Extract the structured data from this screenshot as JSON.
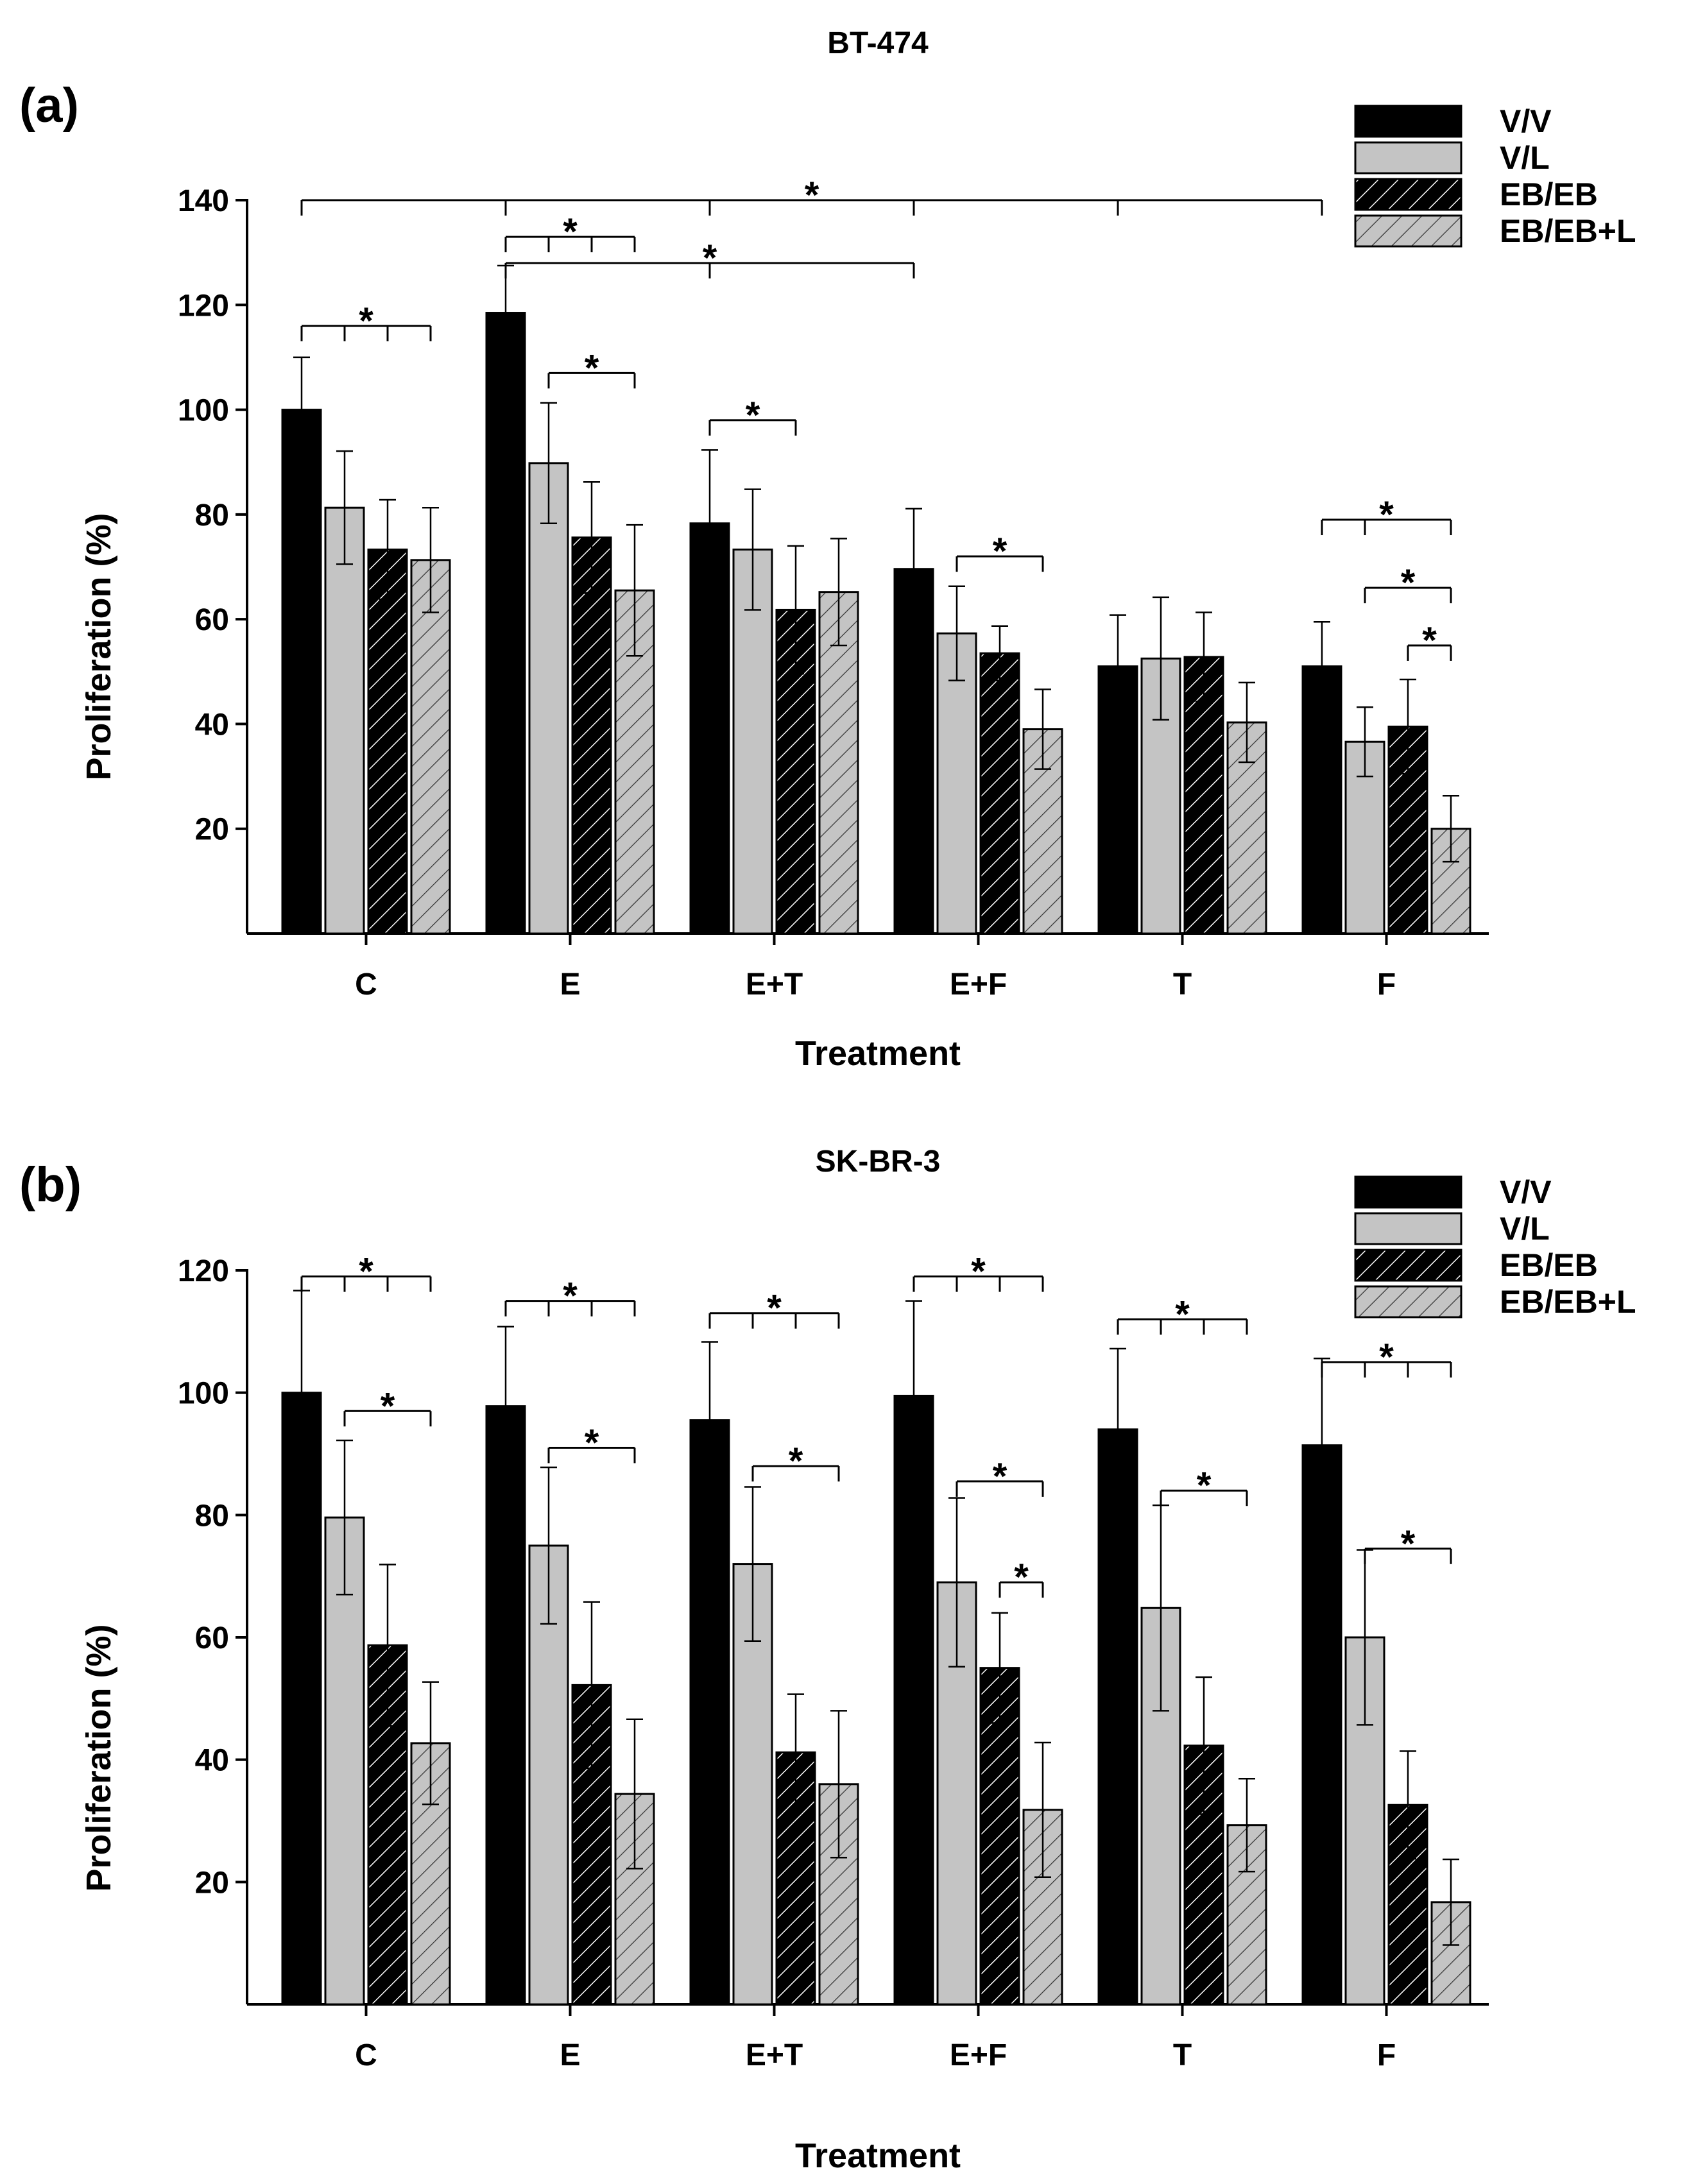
{
  "chart_data": [
    {
      "type": "bar",
      "panel_label": "(a)",
      "title": "BT-474",
      "xlabel": "Treatment",
      "ylabel": "Proliferation (%)",
      "ylim": [
        0,
        140
      ],
      "yticks": [
        20,
        40,
        60,
        80,
        100,
        120,
        140
      ],
      "categories": [
        "C",
        "E",
        "E+T",
        "E+F",
        "T",
        "F"
      ],
      "legend_position": "top-right",
      "series": [
        {
          "name": "V/V",
          "style": "solid-black",
          "values": [
            100,
            118.5,
            78.3,
            69.6,
            51.0,
            51.0
          ],
          "errors": [
            10.0,
            9.0,
            14.0,
            11.5,
            9.8,
            8.5
          ]
        },
        {
          "name": "V/L",
          "style": "solid-gray",
          "values": [
            81.3,
            89.8,
            73.3,
            57.3,
            52.5,
            36.6
          ],
          "errors": [
            10.8,
            11.5,
            11.5,
            9.0,
            11.7,
            6.6
          ]
        },
        {
          "name": "EB/EB",
          "style": "hatched-black",
          "values": [
            73.3,
            75.6,
            61.8,
            53.5,
            52.8,
            39.5
          ],
          "errors": [
            9.5,
            10.6,
            12.2,
            5.2,
            8.5,
            9.0
          ]
        },
        {
          "name": "EB/EB+L",
          "style": "hatched-gray",
          "values": [
            71.3,
            65.5,
            65.2,
            39.0,
            40.3,
            20.0
          ],
          "errors": [
            10.0,
            12.5,
            10.2,
            7.6,
            7.6,
            6.3
          ]
        }
      ],
      "significance": [
        {
          "label": "*",
          "y": 140.0,
          "type": "multi",
          "from": [
            0,
            0
          ],
          "to": [
            [
              1,
              0
            ],
            [
              2,
              0
            ],
            [
              3,
              0
            ],
            [
              4,
              0
            ],
            [
              5,
              0
            ]
          ]
        },
        {
          "label": "*",
          "y": 128.0,
          "type": "multi",
          "from": [
            1,
            0
          ],
          "to": [
            [
              2,
              0
            ],
            [
              3,
              0
            ]
          ]
        },
        {
          "label": "*",
          "y": 133.0,
          "type": "multi",
          "from": [
            1,
            0
          ],
          "to": [
            [
              1,
              1
            ],
            [
              1,
              2
            ],
            [
              1,
              3
            ]
          ]
        },
        {
          "label": "*",
          "y": 107.0,
          "type": "single",
          "from": [
            1,
            1
          ],
          "to": [
            [
              1,
              3
            ]
          ]
        },
        {
          "label": "*",
          "y": 116.0,
          "type": "multi",
          "from": [
            0,
            0
          ],
          "to": [
            [
              0,
              1
            ],
            [
              0,
              2
            ],
            [
              0,
              3
            ]
          ]
        },
        {
          "label": "*",
          "y": 98.0,
          "type": "single",
          "from": [
            2,
            0
          ],
          "to": [
            [
              2,
              2
            ]
          ]
        },
        {
          "label": "*",
          "y": 72.0,
          "type": "single",
          "from": [
            3,
            1
          ],
          "to": [
            [
              3,
              3
            ]
          ]
        },
        {
          "label": "*",
          "y": 79.0,
          "type": "multi",
          "from": [
            5,
            0
          ],
          "to": [
            [
              5,
              1
            ],
            [
              5,
              3
            ]
          ]
        },
        {
          "label": "*",
          "y": 66.0,
          "type": "single",
          "from": [
            5,
            1
          ],
          "to": [
            [
              5,
              3
            ]
          ]
        },
        {
          "label": "*",
          "y": 55.0,
          "type": "single",
          "from": [
            5,
            2
          ],
          "to": [
            [
              5,
              3
            ]
          ]
        }
      ]
    },
    {
      "type": "bar",
      "panel_label": "(b)",
      "title": "SK-BR-3",
      "xlabel": "Treatment",
      "ylabel": "Proliferation (%)",
      "ylim": [
        0,
        120
      ],
      "yticks": [
        20,
        40,
        60,
        80,
        100,
        120
      ],
      "categories": [
        "C",
        "E",
        "E+T",
        "E+F",
        "T",
        "F"
      ],
      "legend_position": "top-right",
      "series": [
        {
          "name": "V/V",
          "style": "solid-black",
          "values": [
            100,
            97.8,
            95.5,
            99.5,
            94.0,
            91.4
          ],
          "errors": [
            16.7,
            13.0,
            12.8,
            15.5,
            13.2,
            14.2
          ]
        },
        {
          "name": "V/L",
          "style": "solid-gray",
          "values": [
            79.6,
            75.0,
            72.0,
            69.0,
            64.8,
            60.0
          ],
          "errors": [
            12.6,
            12.8,
            12.6,
            13.8,
            16.8,
            14.3
          ]
        },
        {
          "name": "EB/EB",
          "style": "hatched-black",
          "values": [
            58.7,
            52.2,
            41.2,
            55.0,
            42.3,
            32.6
          ],
          "errors": [
            13.2,
            13.6,
            9.5,
            9.0,
            11.2,
            8.8
          ]
        },
        {
          "name": "EB/EB+L",
          "style": "hatched-gray",
          "values": [
            42.7,
            34.4,
            36.0,
            31.8,
            29.3,
            16.7
          ],
          "errors": [
            10.0,
            12.2,
            12.0,
            11.0,
            7.6,
            7.0
          ]
        }
      ],
      "significance": [
        {
          "label": "*",
          "y": 119.0,
          "type": "multi",
          "from": [
            0,
            0
          ],
          "to": [
            [
              0,
              1
            ],
            [
              0,
              2
            ],
            [
              0,
              3
            ]
          ]
        },
        {
          "label": "*",
          "y": 97.0,
          "type": "single",
          "from": [
            0,
            1
          ],
          "to": [
            [
              0,
              3
            ]
          ]
        },
        {
          "label": "*",
          "y": 115.0,
          "type": "multi",
          "from": [
            1,
            0
          ],
          "to": [
            [
              1,
              1
            ],
            [
              1,
              2
            ],
            [
              1,
              3
            ]
          ]
        },
        {
          "label": "*",
          "y": 91.0,
          "type": "single",
          "from": [
            1,
            1
          ],
          "to": [
            [
              1,
              3
            ]
          ]
        },
        {
          "label": "*",
          "y": 113.0,
          "type": "multi",
          "from": [
            2,
            0
          ],
          "to": [
            [
              2,
              1
            ],
            [
              2,
              2
            ],
            [
              2,
              3
            ]
          ]
        },
        {
          "label": "*",
          "y": 88.0,
          "type": "single",
          "from": [
            2,
            1
          ],
          "to": [
            [
              2,
              3
            ]
          ]
        },
        {
          "label": "*",
          "y": 119.0,
          "type": "multi",
          "from": [
            3,
            0
          ],
          "to": [
            [
              3,
              1
            ],
            [
              3,
              2
            ],
            [
              3,
              3
            ]
          ]
        },
        {
          "label": "*",
          "y": 85.5,
          "type": "single",
          "from": [
            3,
            1
          ],
          "to": [
            [
              3,
              3
            ]
          ]
        },
        {
          "label": "*",
          "y": 69.0,
          "type": "single",
          "from": [
            3,
            2
          ],
          "to": [
            [
              3,
              3
            ]
          ]
        },
        {
          "label": "*",
          "y": 112.0,
          "type": "multi",
          "from": [
            4,
            0
          ],
          "to": [
            [
              4,
              1
            ],
            [
              4,
              2
            ],
            [
              4,
              3
            ]
          ]
        },
        {
          "label": "*",
          "y": 84.0,
          "type": "single",
          "from": [
            4,
            1
          ],
          "to": [
            [
              4,
              3
            ]
          ]
        },
        {
          "label": "*",
          "y": 105.0,
          "type": "multi",
          "from": [
            5,
            0
          ],
          "to": [
            [
              5,
              1
            ],
            [
              5,
              2
            ],
            [
              5,
              3
            ]
          ]
        },
        {
          "label": "*",
          "y": 74.5,
          "type": "single",
          "from": [
            5,
            1
          ],
          "to": [
            [
              5,
              3
            ]
          ]
        }
      ]
    }
  ]
}
